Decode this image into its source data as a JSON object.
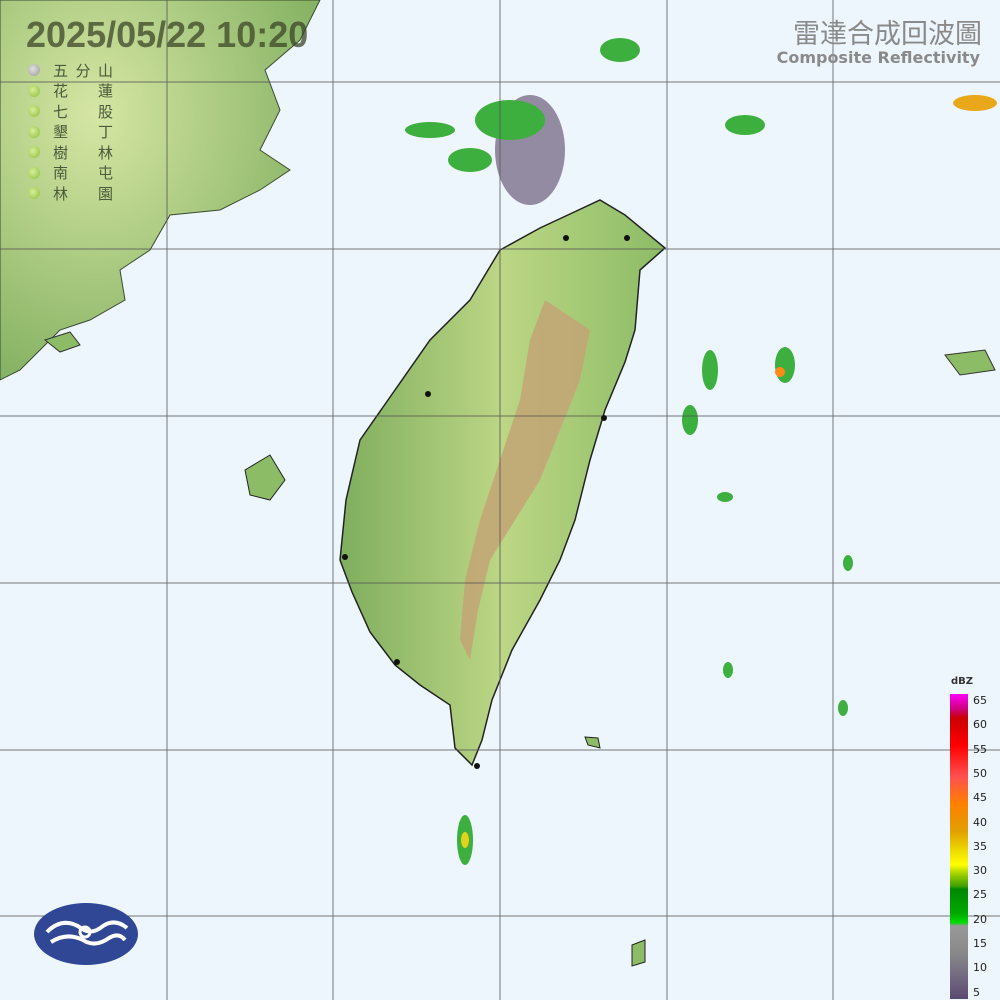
{
  "header": {
    "timestamp": "2025/05/22  10:20",
    "title_zh": "雷達合成回波圖",
    "title_en": "Composite Reflectivity"
  },
  "stations": [
    {
      "name_a": "五",
      "name_b": "分",
      "name_c": "山",
      "status": "offline"
    },
    {
      "name_a": "花",
      "name_b": "",
      "name_c": "蓮",
      "status": "online"
    },
    {
      "name_a": "七",
      "name_b": "",
      "name_c": "股",
      "status": "online"
    },
    {
      "name_a": "墾",
      "name_b": "",
      "name_c": "丁",
      "status": "online"
    },
    {
      "name_a": "樹",
      "name_b": "",
      "name_c": "林",
      "status": "online"
    },
    {
      "name_a": "南",
      "name_b": "",
      "name_c": "屯",
      "status": "online"
    },
    {
      "name_a": "林",
      "name_b": "",
      "name_c": "園",
      "status": "online"
    }
  ],
  "legend": {
    "unit": "dBZ",
    "ticks": [
      "65",
      "60",
      "55",
      "50",
      "45",
      "40",
      "35",
      "30",
      "25",
      "20",
      "15",
      "10",
      "5"
    ]
  },
  "colors": {
    "sea": "#eef6fd",
    "land_low": "#7fae5e",
    "land_mid": "#c9dc8c",
    "mountain": "#b99b6a",
    "gridline": "#555555",
    "logo": "#2f4795"
  }
}
